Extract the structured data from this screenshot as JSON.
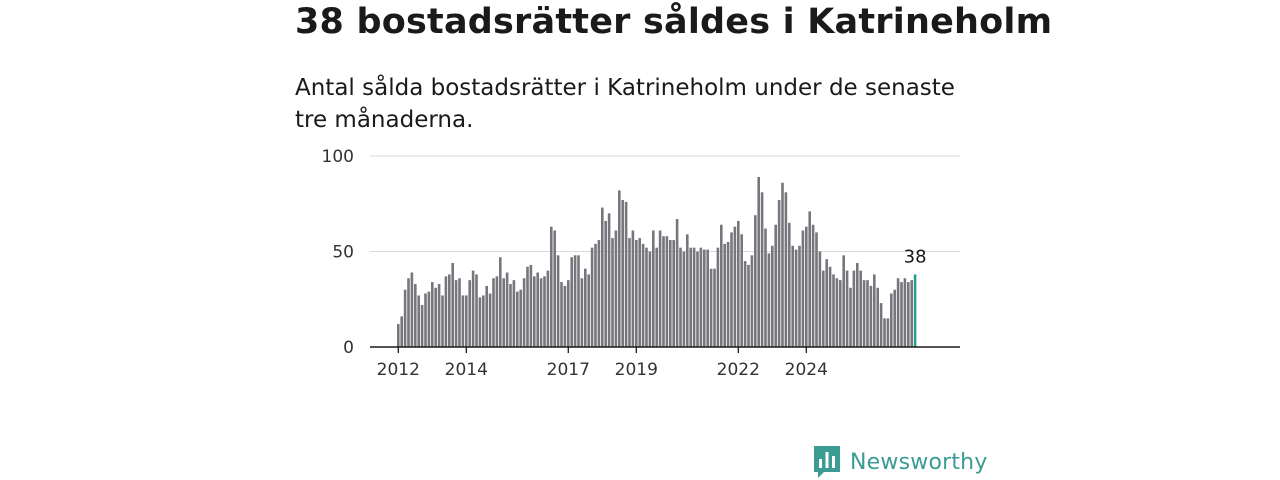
{
  "header": {
    "title": "38 bostadsrätter såldes i Katrineholm",
    "subtitle": "Antal sålda bostadsrätter i Katrineholm under de senaste tre månaderna."
  },
  "brand": {
    "name": "Newsworthy",
    "icon": "newsworthy-logo-icon",
    "color": "#3a9c93"
  },
  "chart_data": {
    "type": "bar",
    "title": "38 bostadsrätter såldes i Katrineholm",
    "subtitle": "Antal sålda bostadsrätter i Katrineholm under de senaste tre månaderna.",
    "xlabel": "",
    "ylabel": "",
    "ylim": [
      0,
      100
    ],
    "y_ticks": [
      0,
      50,
      100
    ],
    "x_tick_labels": [
      {
        "label": "2012",
        "index": 0
      },
      {
        "label": "2014",
        "index": 20
      },
      {
        "label": "2017",
        "index": 50
      },
      {
        "label": "2019",
        "index": 70
      },
      {
        "label": "2022",
        "index": 100
      },
      {
        "label": "2024",
        "index": 120
      }
    ],
    "grid": true,
    "bar_color": "#77767c",
    "highlight_color": "#2c9c93",
    "highlight_label": "38",
    "values": [
      12,
      16,
      30,
      36,
      39,
      33,
      27,
      22,
      28,
      29,
      34,
      31,
      33,
      27,
      37,
      38,
      44,
      35,
      36,
      27,
      27,
      35,
      40,
      38,
      26,
      27,
      32,
      28,
      36,
      37,
      47,
      36,
      39,
      33,
      35,
      29,
      30,
      36,
      42,
      43,
      37,
      39,
      36,
      37,
      40,
      63,
      61,
      48,
      34,
      32,
      35,
      47,
      48,
      48,
      36,
      41,
      38,
      52,
      54,
      56,
      73,
      66,
      70,
      57,
      61,
      82,
      77,
      76,
      57,
      61,
      56,
      57,
      54,
      52,
      50,
      61,
      52,
      61,
      58,
      58,
      56,
      56,
      67,
      52,
      50,
      59,
      52,
      52,
      50,
      52,
      51,
      51,
      41,
      41,
      52,
      64,
      54,
      55,
      60,
      63,
      66,
      59,
      45,
      43,
      48,
      69,
      89,
      81,
      62,
      49,
      53,
      64,
      77,
      86,
      81,
      65,
      53,
      51,
      53,
      61,
      63,
      71,
      64,
      60,
      50,
      40,
      46,
      42,
      38,
      36,
      35,
      48,
      40,
      31,
      40,
      44,
      40,
      35,
      35,
      32,
      38,
      31,
      23,
      15,
      15,
      28,
      30,
      36,
      34,
      36,
      34,
      35,
      38
    ]
  }
}
